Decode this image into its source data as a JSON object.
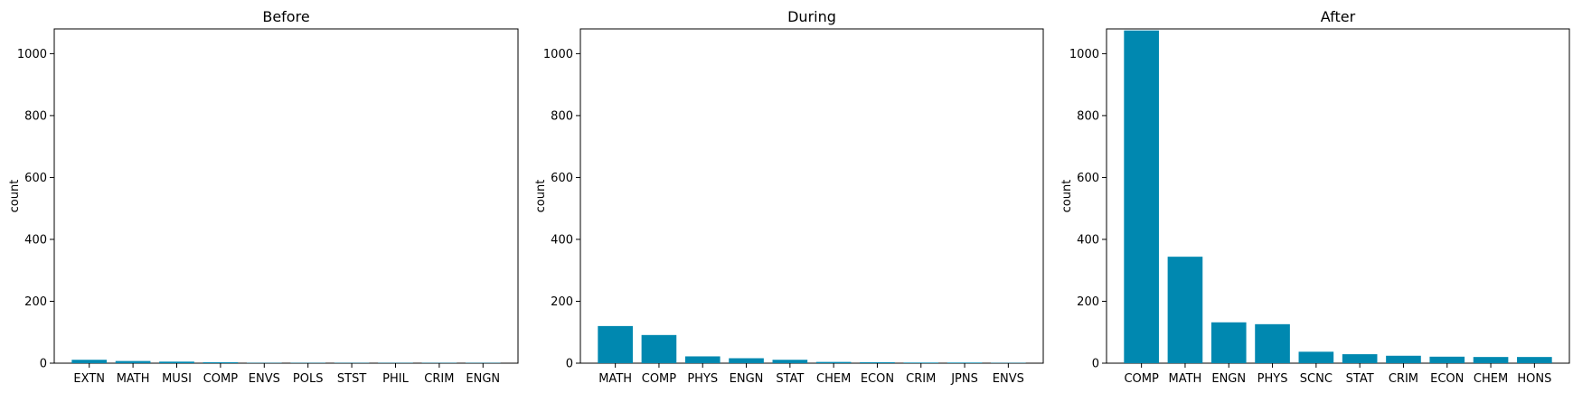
{
  "chart_data": [
    {
      "type": "bar",
      "title": "Before",
      "ylabel": "count",
      "xlabel": "",
      "ylim": [
        0,
        1080
      ],
      "yticks": [
        0,
        200,
        400,
        600,
        800,
        1000
      ],
      "categories": [
        "EXTN",
        "MATH",
        "MUSI",
        "COMP",
        "ENVS",
        "POLS",
        "STST",
        "PHIL",
        "CRIM",
        "ENGN"
      ],
      "values": [
        11,
        7,
        5,
        3,
        1,
        1,
        1,
        1,
        1,
        1
      ],
      "color": "#0088b0"
    },
    {
      "type": "bar",
      "title": "During",
      "ylabel": "count",
      "xlabel": "",
      "ylim": [
        0,
        1080
      ],
      "yticks": [
        0,
        200,
        400,
        600,
        800,
        1000
      ],
      "categories": [
        "MATH",
        "COMP",
        "PHYS",
        "ENGN",
        "STAT",
        "CHEM",
        "ECON",
        "CRIM",
        "JPNS",
        "ENVS"
      ],
      "values": [
        120,
        91,
        22,
        16,
        11,
        4,
        3,
        2,
        2,
        1
      ],
      "color": "#0088b0"
    },
    {
      "type": "bar",
      "title": "After",
      "ylabel": "count",
      "xlabel": "",
      "ylim": [
        0,
        1080
      ],
      "yticks": [
        0,
        200,
        400,
        600,
        800,
        1000
      ],
      "categories": [
        "COMP",
        "MATH",
        "ENGN",
        "PHYS",
        "SCNC",
        "STAT",
        "CRIM",
        "ECON",
        "CHEM",
        "HONS"
      ],
      "values": [
        1075,
        344,
        132,
        126,
        37,
        29,
        24,
        21,
        20,
        20
      ],
      "color": "#0088b0"
    }
  ]
}
